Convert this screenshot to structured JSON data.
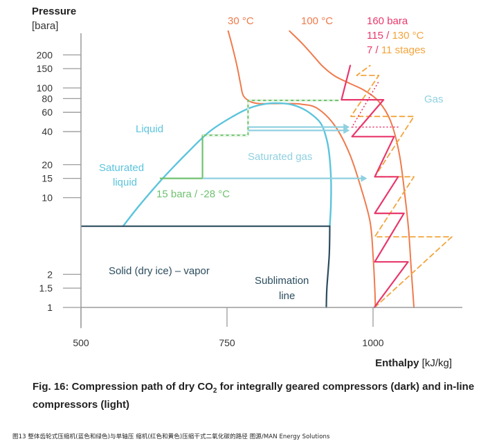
{
  "chart_data": {
    "type": "line",
    "ylabel": "Pressure",
    "yunit": "[bara]",
    "xlabel": "Enthalpy",
    "xunit": "[kJ/kg]",
    "x_scale": "linear",
    "y_scale": "log",
    "xlim": [
      450,
      1150
    ],
    "ylim": [
      1,
      250
    ],
    "x_ticks": [
      500,
      750,
      1000
    ],
    "y_ticks": [
      1,
      1.5,
      2,
      10,
      15,
      20,
      40,
      60,
      80,
      100,
      150,
      200
    ],
    "grid": false,
    "legend_top_right": {
      "line1": "160 bara",
      "line2_a": "115",
      "line2_sep": " / ",
      "line2_b": "130 °C",
      "line3_a": "7",
      "line3_sep": " / ",
      "line3_b": "11 stages"
    },
    "region_labels": {
      "liquid": "Liquid",
      "saturated_liquid_1": "Saturated",
      "saturated_liquid_2": "liquid",
      "saturated_gas": "Saturated gas",
      "gas": "Gas",
      "solid_vapor": "Solid (dry ice) – vapor",
      "sublimation_1": "Sublimation",
      "sublimation_2": "line",
      "green_start": "15 bara / -28 °C",
      "iso_30": "30 °C",
      "iso_100": "100 °C"
    },
    "series": [
      {
        "name": "Saturation dome",
        "color": "#5bc4dc",
        "points": [
          [
            572,
            5.5
          ],
          [
            600,
            8.5
          ],
          [
            640,
            15
          ],
          [
            680,
            25
          ],
          [
            720,
            40
          ],
          [
            760,
            55
          ],
          [
            790,
            66
          ],
          [
            820,
            72
          ],
          [
            850,
            72
          ],
          [
            870,
            68
          ],
          [
            890,
            60
          ],
          [
            910,
            48
          ],
          [
            920,
            35
          ],
          [
            925,
            25
          ],
          [
            928,
            15
          ],
          [
            928,
            9
          ],
          [
            926,
            5.5
          ]
        ]
      },
      {
        "name": "Triple line",
        "color": "#2b4c5e",
        "points": [
          [
            500,
            5.5
          ],
          [
            926,
            5.5
          ]
        ]
      },
      {
        "name": "Sublimation line",
        "color": "#2b4c5e",
        "points": [
          [
            926,
            5.5
          ],
          [
            925,
            3
          ],
          [
            921,
            1.5
          ],
          [
            920,
            1
          ]
        ]
      },
      {
        "name": "30 °C",
        "color": "#ef7a4c",
        "points": [
          [
            752,
            330
          ],
          [
            759,
            240
          ],
          [
            767,
            160
          ],
          [
            773,
            110
          ],
          [
            778,
            85
          ],
          [
            790,
            75
          ],
          [
            805,
            72
          ],
          [
            825,
            72
          ],
          [
            855,
            72
          ],
          [
            878,
            71
          ],
          [
            905,
            65
          ],
          [
            935,
            45
          ],
          [
            960,
            25
          ],
          [
            980,
            12
          ],
          [
            995,
            6
          ],
          [
            1000,
            3
          ],
          [
            1003,
            1.5
          ],
          [
            1004,
            1
          ]
        ]
      },
      {
        "name": "100 °C",
        "color": "#ef7a4c",
        "points": [
          [
            857,
            330
          ],
          [
            880,
            250
          ],
          [
            900,
            190
          ],
          [
            915,
            155
          ],
          [
            935,
            128
          ],
          [
            960,
            110
          ],
          [
            985,
            95
          ],
          [
            1010,
            75
          ],
          [
            1030,
            50
          ],
          [
            1045,
            25
          ],
          [
            1055,
            10
          ],
          [
            1061,
            5
          ],
          [
            1066,
            2
          ],
          [
            1070,
            1
          ]
        ]
      },
      {
        "name": "In-line path (7 stages)",
        "color": "#e8376b",
        "points": [
          [
            1002,
            1
          ],
          [
            1060,
            2.6
          ],
          [
            1003,
            2.6
          ],
          [
            1053,
            7.2
          ],
          [
            1003,
            7.2
          ],
          [
            1043,
            15.5
          ],
          [
            1003,
            15.5
          ],
          [
            1036,
            36
          ],
          [
            964,
            36
          ],
          [
            1018,
            78
          ],
          [
            946,
            78
          ],
          [
            961,
            160
          ]
        ]
      },
      {
        "name": "Integrally geared path (11 stages)",
        "color": "#f2a43c",
        "points": [
          [
            1003,
            1
          ],
          [
            1135,
            4.4
          ],
          [
            1003,
            4.4
          ],
          [
            1070,
            15.5
          ],
          [
            1003,
            15.5
          ],
          [
            1070,
            55
          ],
          [
            962,
            55
          ],
          [
            1010,
            130
          ],
          [
            972,
            130
          ],
          [
            995,
            160
          ]
        ]
      },
      {
        "name": "Liquid path (green)",
        "color": "#6fc16f",
        "points": [
          [
            636,
            15
          ],
          [
            708,
            15
          ],
          [
            708,
            37
          ],
          [
            786,
            37
          ],
          [
            786,
            77
          ],
          [
            940,
            77
          ]
        ]
      }
    ],
    "arrows": [
      {
        "color": "#8fd0e0",
        "from": [
          786,
          41
        ],
        "to": [
          960,
          41
        ]
      },
      {
        "color": "#8fd0e0",
        "from": [
          786,
          44
        ],
        "to": [
          960,
          44
        ]
      },
      {
        "color": "#8fd0e0",
        "from": [
          708,
          15
        ],
        "to": [
          990,
          15
        ]
      }
    ]
  },
  "figure": {
    "caption_before": "Fig. 16: Compression path of dry CO",
    "caption_sub": "2",
    "caption_after": " for integrally geared compressors (dark) and in-line compressors (light)",
    "footnote": "图13 整体齿轮式压缩机(蓝色和绿色)与单轴压 缩机(红色和黄色)压缩干式二氧化碳的路径 图源/MAN Energy Solutions"
  }
}
